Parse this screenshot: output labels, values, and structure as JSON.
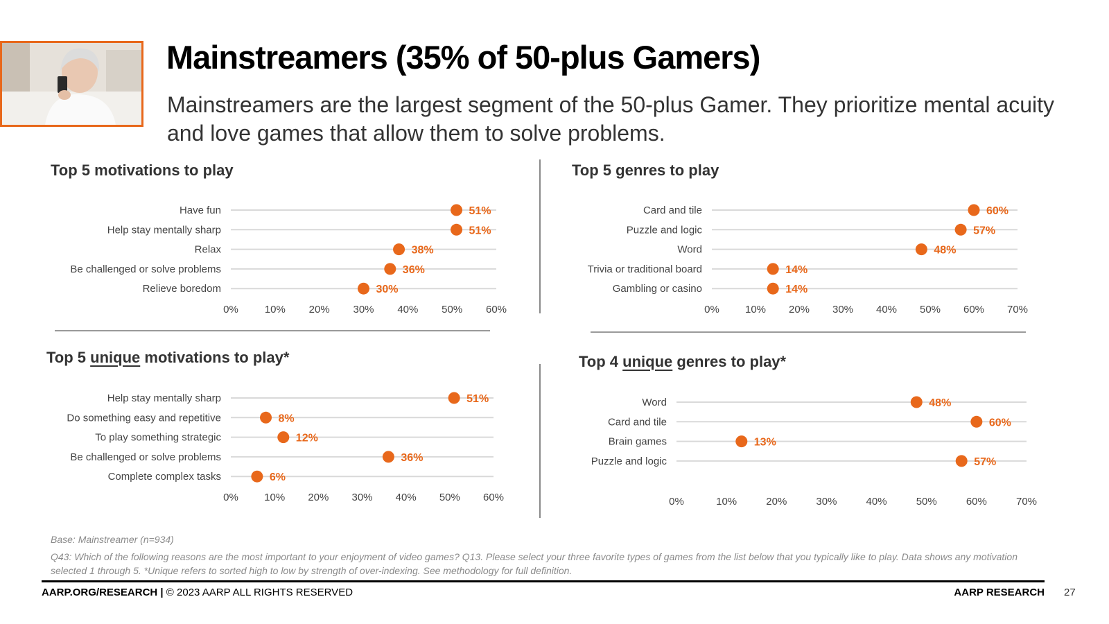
{
  "header": {
    "title": "Mainstreamers (35% of 50-plus Gamers)",
    "subtitle": "Mainstreamers are the largest segment of the 50-plus Gamer. They prioritize mental acuity and love games that allow them to solve problems."
  },
  "colors": {
    "accent": "#e8681b",
    "gridline": "#d9d9d9",
    "rule": "#9a9a9a"
  },
  "chart_data": [
    {
      "type": "scatter",
      "id": "top-motivations",
      "title": "Top 5 motivations to play",
      "categories": [
        "Have fun",
        "Help stay mentally sharp",
        "Relax",
        "Be challenged or solve problems",
        "Relieve boredom"
      ],
      "values": [
        51,
        51,
        38,
        36,
        30
      ],
      "value_labels": [
        "51%",
        "51%",
        "38%",
        "36%",
        "30%"
      ],
      "xlim": [
        0,
        60
      ],
      "ticks": [
        "0%",
        "10%",
        "20%",
        "30%",
        "40%",
        "50%",
        "60%"
      ]
    },
    {
      "type": "scatter",
      "id": "top-genres",
      "title": "Top 5 genres to play",
      "categories": [
        "Card and tile",
        "Puzzle and logic",
        "Word",
        "Trivia or traditional board",
        "Gambling or casino"
      ],
      "values": [
        60,
        57,
        48,
        14,
        14
      ],
      "value_labels": [
        "60%",
        "57%",
        "48%",
        "14%",
        "14%"
      ],
      "xlim": [
        0,
        70
      ],
      "ticks": [
        "0%",
        "10%",
        "20%",
        "30%",
        "40%",
        "50%",
        "60%",
        "70%"
      ]
    },
    {
      "type": "scatter",
      "id": "unique-motivations",
      "title_prefix": "Top 5 ",
      "title_emphasis": "unique",
      "title_suffix": " motivations to play*",
      "categories": [
        "Help stay mentally sharp",
        "Do something easy and repetitive",
        "To play something strategic",
        "Be challenged or solve problems",
        "Complete complex tasks"
      ],
      "values": [
        51,
        8,
        12,
        36,
        6
      ],
      "value_labels": [
        "51%",
        "8%",
        "12%",
        "36%",
        "6%"
      ],
      "xlim": [
        0,
        60
      ],
      "ticks": [
        "0%",
        "10%",
        "20%",
        "30%",
        "40%",
        "50%",
        "60%"
      ]
    },
    {
      "type": "scatter",
      "id": "unique-genres",
      "title_prefix": "Top 4 ",
      "title_emphasis": "unique",
      "title_suffix": " genres to play*",
      "categories": [
        "Word",
        "Card and tile",
        "Brain games",
        "Puzzle and logic"
      ],
      "values": [
        48,
        60,
        13,
        57
      ],
      "value_labels": [
        "48%",
        "60%",
        "13%",
        "57%"
      ],
      "xlim": [
        0,
        70
      ],
      "ticks": [
        "0%",
        "10%",
        "20%",
        "30%",
        "40%",
        "50%",
        "60%",
        "70%"
      ]
    }
  ],
  "notes": {
    "base": "Base: Mainstreamer (n=934)",
    "question": "Q43: Which of the following reasons are the most important to your enjoyment of video games?  Q13. Please select your three favorite types of games from the list below that you typically like to play. Data shows any motivation selected 1 through 5. *Unique refers to sorted high to low by strength of over-indexing. See methodology for full definition."
  },
  "footer": {
    "site": "AARP.ORG/RESEARCH",
    "separator": " | ",
    "copyright": "© 2023 AARP ALL RIGHTS RESERVED",
    "brand": "AARP RESEARCH",
    "page_number": "27"
  }
}
